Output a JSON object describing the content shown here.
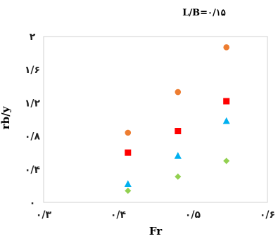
{
  "chart_data": {
    "type": "scatter",
    "title": "L/B=۰/۱۵",
    "xlabel": "Fr",
    "ylabel": "rb/y",
    "xlim": [
      0.3,
      0.6
    ],
    "ylim": [
      0,
      2
    ],
    "x_ticks": [
      {
        "value": 0.3,
        "label": "۰/۳"
      },
      {
        "value": 0.4,
        "label": "۰/۴"
      },
      {
        "value": 0.5,
        "label": "۰/۵"
      },
      {
        "value": 0.6,
        "label": "۰/۶"
      }
    ],
    "y_ticks": [
      {
        "value": 0,
        "label": "۰"
      },
      {
        "value": 0.4,
        "label": "۰/۴"
      },
      {
        "value": 0.8,
        "label": "۰/۸"
      },
      {
        "value": 1.2,
        "label": "۱/۲"
      },
      {
        "value": 1.6,
        "label": "۱/۶"
      },
      {
        "value": 2.0,
        "label": "۲"
      }
    ],
    "grid": false,
    "series": [
      {
        "marker": "circle",
        "color": "#ed7d31",
        "points": [
          {
            "x": 0.413,
            "y": 0.84
          },
          {
            "x": 0.48,
            "y": 1.33
          },
          {
            "x": 0.545,
            "y": 1.87
          }
        ]
      },
      {
        "marker": "square",
        "color": "#ff0000",
        "points": [
          {
            "x": 0.413,
            "y": 0.6
          },
          {
            "x": 0.48,
            "y": 0.86
          },
          {
            "x": 0.545,
            "y": 1.22
          }
        ]
      },
      {
        "marker": "triangle",
        "color": "#00b0f0",
        "points": [
          {
            "x": 0.413,
            "y": 0.22
          },
          {
            "x": 0.48,
            "y": 0.56
          },
          {
            "x": 0.545,
            "y": 0.98
          }
        ]
      },
      {
        "marker": "diamond",
        "color": "#92d050",
        "points": [
          {
            "x": 0.413,
            "y": 0.14
          },
          {
            "x": 0.48,
            "y": 0.31
          },
          {
            "x": 0.545,
            "y": 0.5
          }
        ]
      }
    ]
  }
}
